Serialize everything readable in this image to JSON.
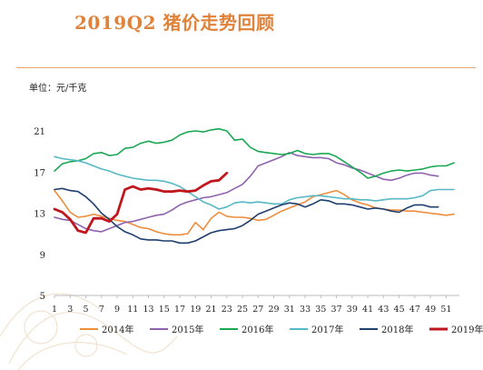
{
  "title": "2019Q2 猪价走势回顾",
  "unit_label": "单位：元/千克",
  "colors": {
    "title": "#e0823a",
    "rule": "#e8a56f"
  },
  "chart_data": {
    "type": "line",
    "title": "",
    "xlabel": "",
    "ylabel": "单位：元/千克",
    "xlim": [
      1,
      52
    ],
    "ylim": [
      5,
      21
    ],
    "x_ticks": [
      1,
      3,
      5,
      7,
      9,
      11,
      13,
      15,
      17,
      19,
      21,
      23,
      25,
      27,
      29,
      31,
      33,
      35,
      37,
      39,
      41,
      43,
      45,
      47,
      49,
      51
    ],
    "y_ticks": [
      5,
      9,
      13,
      17,
      21
    ],
    "grid": false,
    "legend_position": "bottom",
    "series": [
      {
        "name": "2014年",
        "color": "#ee8d3b",
        "x": [
          1,
          2,
          3,
          4,
          5,
          6,
          7,
          8,
          9,
          10,
          11,
          12,
          13,
          14,
          15,
          16,
          17,
          18,
          19,
          20,
          21,
          22,
          23,
          24,
          25,
          26,
          27,
          28,
          29,
          30,
          31,
          32,
          33,
          34,
          35,
          36,
          37,
          38,
          39,
          40,
          41,
          42,
          43,
          44,
          45,
          46,
          47,
          48,
          49,
          50,
          51,
          52
        ],
        "values": [
          15.2,
          14.2,
          13.1,
          12.6,
          12.7,
          12.9,
          12.7,
          12.5,
          12.3,
          12.2,
          11.9,
          11.6,
          11.5,
          11.2,
          11.0,
          10.9,
          10.9,
          11.0,
          12.1,
          11.4,
          12.5,
          13.1,
          12.7,
          12.6,
          12.6,
          12.5,
          12.3,
          12.4,
          12.8,
          13.2,
          13.5,
          13.8,
          14.1,
          14.6,
          14.8,
          15.0,
          15.2,
          14.8,
          14.3,
          14.0,
          13.8,
          13.5,
          13.4,
          13.3,
          13.3,
          13.2,
          13.2,
          13.1,
          13.0,
          12.9,
          12.8,
          12.9
        ]
      },
      {
        "name": "2015年",
        "color": "#8e63ad",
        "x": [
          1,
          2,
          3,
          4,
          5,
          6,
          7,
          8,
          9,
          10,
          11,
          12,
          13,
          14,
          15,
          16,
          17,
          18,
          19,
          20,
          21,
          22,
          23,
          24,
          25,
          26,
          27,
          28,
          29,
          30,
          31,
          32,
          33,
          34,
          35,
          36,
          37,
          38,
          39,
          40,
          41,
          42,
          43,
          44,
          45,
          46,
          47,
          48,
          49,
          50
        ],
        "values": [
          12.6,
          12.4,
          12.3,
          11.9,
          11.5,
          11.3,
          11.2,
          11.5,
          11.8,
          12.1,
          12.2,
          12.4,
          12.6,
          12.8,
          12.9,
          13.3,
          13.8,
          14.1,
          14.3,
          14.5,
          14.6,
          14.8,
          15.0,
          15.4,
          15.8,
          16.6,
          17.6,
          17.9,
          18.2,
          18.5,
          18.9,
          18.6,
          18.5,
          18.4,
          18.4,
          18.3,
          17.9,
          17.7,
          17.4,
          17.2,
          16.9,
          16.6,
          16.3,
          16.2,
          16.4,
          16.7,
          16.9,
          16.9,
          16.7,
          16.6
        ]
      },
      {
        "name": "2016年",
        "color": "#1aa853",
        "x": [
          1,
          2,
          3,
          4,
          5,
          6,
          7,
          8,
          9,
          10,
          11,
          12,
          13,
          14,
          15,
          16,
          17,
          18,
          19,
          20,
          21,
          22,
          23,
          24,
          25,
          26,
          27,
          28,
          29,
          30,
          31,
          32,
          33,
          34,
          35,
          36,
          37,
          38,
          39,
          40,
          41,
          42,
          43,
          44,
          45,
          46,
          47,
          48,
          49,
          50,
          51,
          52
        ],
        "values": [
          17.1,
          17.8,
          18.0,
          18.1,
          18.3,
          18.8,
          18.9,
          18.6,
          18.7,
          19.3,
          19.4,
          19.8,
          20.0,
          19.8,
          19.9,
          20.1,
          20.6,
          20.9,
          21.0,
          20.9,
          21.1,
          21.2,
          21.0,
          20.1,
          20.2,
          19.4,
          19.0,
          18.9,
          18.8,
          18.7,
          18.8,
          19.1,
          18.8,
          18.7,
          18.8,
          18.8,
          18.5,
          18.0,
          17.5,
          17.0,
          16.4,
          16.6,
          16.9,
          17.1,
          17.2,
          17.1,
          17.2,
          17.3,
          17.5,
          17.6,
          17.6,
          17.9
        ]
      },
      {
        "name": "2017年",
        "color": "#57b9c4",
        "x": [
          1,
          2,
          3,
          4,
          5,
          6,
          7,
          8,
          9,
          10,
          11,
          12,
          13,
          14,
          15,
          16,
          17,
          18,
          19,
          20,
          21,
          22,
          23,
          24,
          25,
          26,
          27,
          28,
          29,
          30,
          31,
          32,
          33,
          34,
          35,
          36,
          37,
          38,
          39,
          40,
          41,
          42,
          43,
          44,
          45,
          46,
          47,
          48,
          49,
          50,
          51,
          52
        ],
        "values": [
          18.5,
          18.3,
          18.2,
          18.1,
          17.9,
          17.6,
          17.3,
          17.1,
          16.8,
          16.6,
          16.4,
          16.3,
          16.2,
          16.2,
          16.1,
          15.9,
          15.6,
          15.1,
          14.6,
          14.1,
          13.8,
          13.4,
          13.6,
          14.0,
          14.1,
          14.0,
          14.1,
          14.0,
          13.9,
          13.9,
          14.3,
          14.5,
          14.6,
          14.7,
          14.7,
          14.6,
          14.5,
          14.4,
          14.4,
          14.3,
          14.3,
          14.2,
          14.3,
          14.4,
          14.4,
          14.4,
          14.5,
          14.7,
          15.2,
          15.3,
          15.3,
          15.3
        ]
      },
      {
        "name": "2018年",
        "color": "#1f3f6e",
        "x": [
          1,
          2,
          3,
          4,
          5,
          6,
          7,
          8,
          9,
          10,
          11,
          12,
          13,
          14,
          15,
          16,
          17,
          18,
          19,
          20,
          21,
          22,
          23,
          24,
          25,
          26,
          27,
          28,
          29,
          30,
          31,
          32,
          33,
          34,
          35,
          36,
          37,
          38,
          39,
          40,
          41,
          42,
          43,
          44,
          45,
          46,
          47,
          48,
          49,
          50
        ],
        "values": [
          15.3,
          15.4,
          15.2,
          15.1,
          14.6,
          13.9,
          13.0,
          12.4,
          11.7,
          11.2,
          10.9,
          10.5,
          10.4,
          10.4,
          10.3,
          10.3,
          10.1,
          10.1,
          10.3,
          10.7,
          11.1,
          11.3,
          11.4,
          11.5,
          11.8,
          12.3,
          12.9,
          13.2,
          13.5,
          13.8,
          14.0,
          13.9,
          13.6,
          13.9,
          14.3,
          14.2,
          13.9,
          13.9,
          13.8,
          13.6,
          13.4,
          13.5,
          13.4,
          13.2,
          13.1,
          13.5,
          13.8,
          13.8,
          13.6,
          13.6
        ]
      },
      {
        "name": "2019年",
        "color": "#c0161d",
        "x": [
          1,
          2,
          3,
          4,
          5,
          6,
          7,
          8,
          9,
          10,
          11,
          12,
          13,
          14,
          15,
          16,
          17,
          18,
          19,
          20,
          21,
          22,
          23
        ],
        "values": [
          13.4,
          13.1,
          12.4,
          11.3,
          11.1,
          12.5,
          12.5,
          12.2,
          12.9,
          15.3,
          15.6,
          15.3,
          15.4,
          15.3,
          15.1,
          15.1,
          15.2,
          15.1,
          15.2,
          15.7,
          16.1,
          16.2,
          16.9
        ]
      }
    ]
  }
}
